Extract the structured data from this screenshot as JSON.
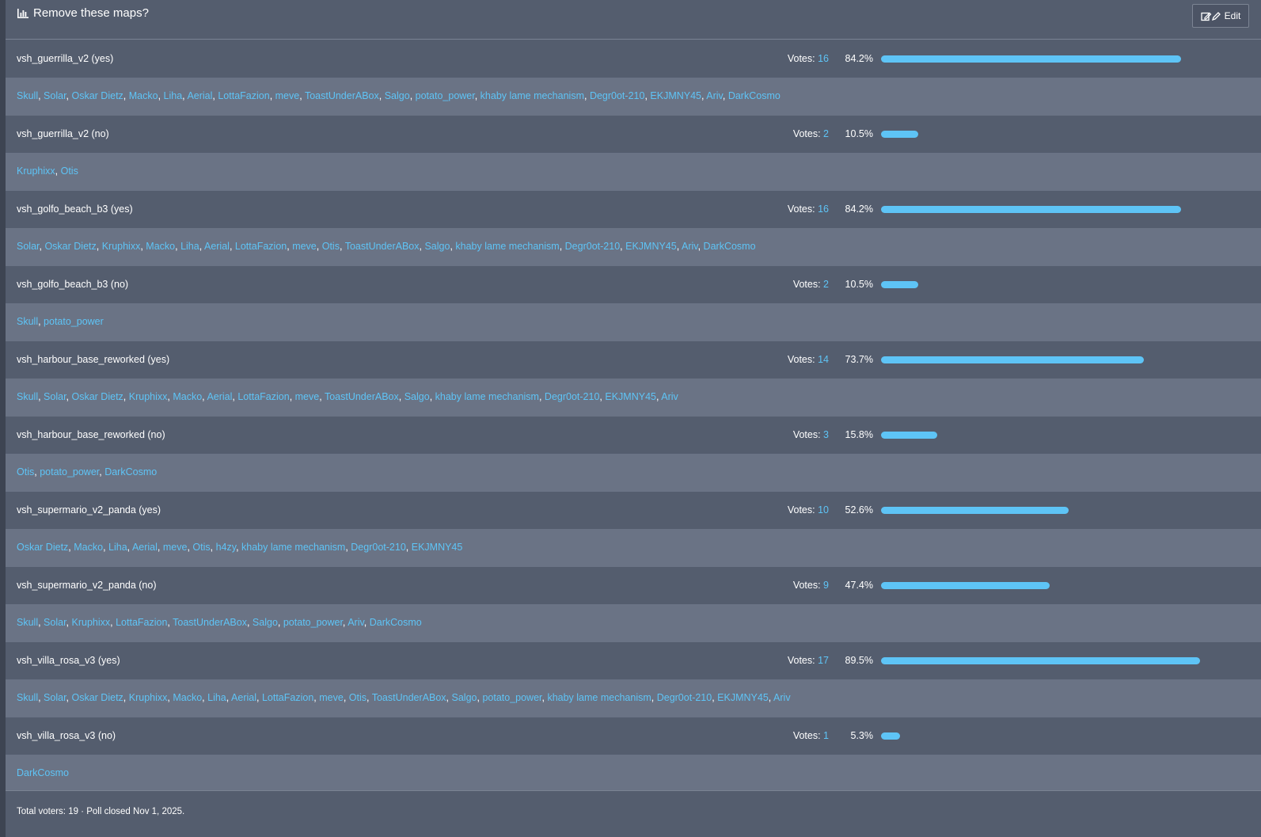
{
  "poll": {
    "title": "Remove these maps?",
    "edit_label": "Edit",
    "options": [
      {
        "label": "vsh_guerrilla_v2 (yes)",
        "votes": "16",
        "percent": "84.2%",
        "fraction": 0.842,
        "voters": [
          "Skull",
          "Solar",
          "Oskar Dietz",
          "Macko",
          "Liha",
          "Aerial",
          "LottaFazion",
          "meve",
          "ToastUnderABox",
          "Salgo",
          "potato_power",
          "khaby lame mechanism",
          "Degr0ot-210",
          "EKJMNY45",
          "Ariv",
          "DarkCosmo"
        ]
      },
      {
        "label": "vsh_guerrilla_v2 (no)",
        "votes": "2",
        "percent": "10.5%",
        "fraction": 0.105,
        "voters": [
          "Kruphixx",
          "Otis"
        ]
      },
      {
        "label": "vsh_golfo_beach_b3 (yes)",
        "votes": "16",
        "percent": "84.2%",
        "fraction": 0.842,
        "voters": [
          "Solar",
          "Oskar Dietz",
          "Kruphixx",
          "Macko",
          "Liha",
          "Aerial",
          "LottaFazion",
          "meve",
          "Otis",
          "ToastUnderABox",
          "Salgo",
          "khaby lame mechanism",
          "Degr0ot-210",
          "EKJMNY45",
          "Ariv",
          "DarkCosmo"
        ]
      },
      {
        "label": "vsh_golfo_beach_b3 (no)",
        "votes": "2",
        "percent": "10.5%",
        "fraction": 0.105,
        "voters": [
          "Skull",
          "potato_power"
        ]
      },
      {
        "label": "vsh_harbour_base_reworked (yes)",
        "votes": "14",
        "percent": "73.7%",
        "fraction": 0.737,
        "voters": [
          "Skull",
          "Solar",
          "Oskar Dietz",
          "Kruphixx",
          "Macko",
          "Aerial",
          "LottaFazion",
          "meve",
          "ToastUnderABox",
          "Salgo",
          "khaby lame mechanism",
          "Degr0ot-210",
          "EKJMNY45",
          "Ariv"
        ]
      },
      {
        "label": "vsh_harbour_base_reworked (no)",
        "votes": "3",
        "percent": "15.8%",
        "fraction": 0.158,
        "voters": [
          "Otis",
          "potato_power",
          "DarkCosmo"
        ]
      },
      {
        "label": "vsh_supermario_v2_panda (yes)",
        "votes": "10",
        "percent": "52.6%",
        "fraction": 0.526,
        "voters": [
          "Oskar Dietz",
          "Macko",
          "Liha",
          "Aerial",
          "meve",
          "Otis",
          "h4zy",
          "khaby lame mechanism",
          "Degr0ot-210",
          "EKJMNY45"
        ]
      },
      {
        "label": "vsh_supermario_v2_panda (no)",
        "votes": "9",
        "percent": "47.4%",
        "fraction": 0.474,
        "voters": [
          "Skull",
          "Solar",
          "Kruphixx",
          "LottaFazion",
          "ToastUnderABox",
          "Salgo",
          "potato_power",
          "Ariv",
          "DarkCosmo"
        ]
      },
      {
        "label": "vsh_villa_rosa_v3 (yes)",
        "votes": "17",
        "percent": "89.5%",
        "fraction": 0.895,
        "voters": [
          "Skull",
          "Solar",
          "Oskar Dietz",
          "Kruphixx",
          "Macko",
          "Liha",
          "Aerial",
          "LottaFazion",
          "meve",
          "Otis",
          "ToastUnderABox",
          "Salgo",
          "potato_power",
          "khaby lame mechanism",
          "Degr0ot-210",
          "EKJMNY45",
          "Ariv"
        ]
      },
      {
        "label": "vsh_villa_rosa_v3 (no)",
        "votes": "1",
        "percent": "5.3%",
        "fraction": 0.053,
        "voters": [
          "DarkCosmo"
        ]
      }
    ],
    "votes_prefix": "Votes: ",
    "footer": "Total voters: 19 · Poll closed Nov 1, 2025."
  },
  "colors": {
    "accent": "#5ec4f6",
    "row_bg": "#545d6e",
    "voters_bg": "#6a7385"
  },
  "icons": {
    "title_icon": "bar-chart-icon",
    "edit_icon": "edit-pencil-icon"
  }
}
